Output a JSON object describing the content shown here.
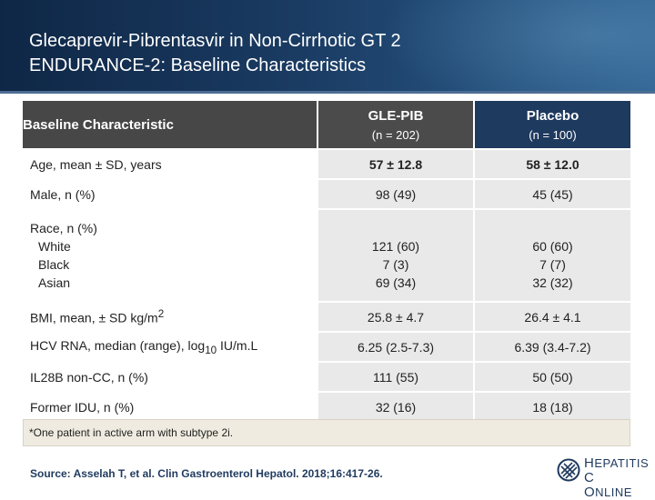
{
  "slide": {
    "title_line1": "Glecaprevir-Pibrentasvir in Non-Cirrhotic GT 2",
    "title_line2": "ENDURANCE-2: Baseline Characteristics"
  },
  "table": {
    "header": {
      "label": "Baseline Characteristic",
      "arm1_name": "GLE-PIB",
      "arm1_n": "(n = 202)",
      "arm2_name": "Placebo",
      "arm2_n": "(n = 100)"
    },
    "rows": {
      "age": {
        "label": "Age, mean ± SD, years",
        "v1": "57 ± 12.8",
        "v2": "58 ± 12.0"
      },
      "male": {
        "label": "Male, n (%)",
        "v1": "98 (49)",
        "v2": "45 (45)"
      },
      "race": {
        "label": "Race, n (%)",
        "white_label": "White",
        "black_label": "Black",
        "asian_label": "Asian",
        "white_v1": "121 (60)",
        "black_v1": "7 (3)",
        "asian_v1": "69 (34)",
        "white_v2": "60 (60)",
        "black_v2": "7 (7)",
        "asian_v2": "32 (32)"
      },
      "bmi": {
        "label": "BMI, mean, ± SD kg/m",
        "label_sup": "2",
        "v1": "25.8 ± 4.7",
        "v2": "26.4 ± 4.1"
      },
      "hcv": {
        "label": "HCV RNA, median (range), log",
        "label_sub": "10",
        "label_tail": " IU/m.L",
        "v1": "6.25 (2.5-7.3)",
        "v2": "6.39 (3.4-7.2)"
      },
      "il28b": {
        "label": "IL28B non-CC, n (%)",
        "v1": "111 (55)",
        "v2": "50 (50)"
      },
      "idu": {
        "label": "Former IDU, n (%)",
        "v1": "32 (16)",
        "v2": "18 (18)"
      }
    }
  },
  "footnote": "*One patient in active arm with subtype 2i.",
  "source": "Source: Asselah T, et al. Clin Gastroenterol Hepatol. 2018;16:417-26.",
  "logo": {
    "line1_initial": "H",
    "line1_rest": "EPATITIS",
    "line1_letter": "C",
    "line2_initial": "O",
    "line2_rest": "NLINE"
  },
  "colors": {
    "header_dark": "#0f2746",
    "placebo_header": "#1f3a5f",
    "cell_gray": "#e9e9e9",
    "footnote_bg": "#efebe0"
  }
}
